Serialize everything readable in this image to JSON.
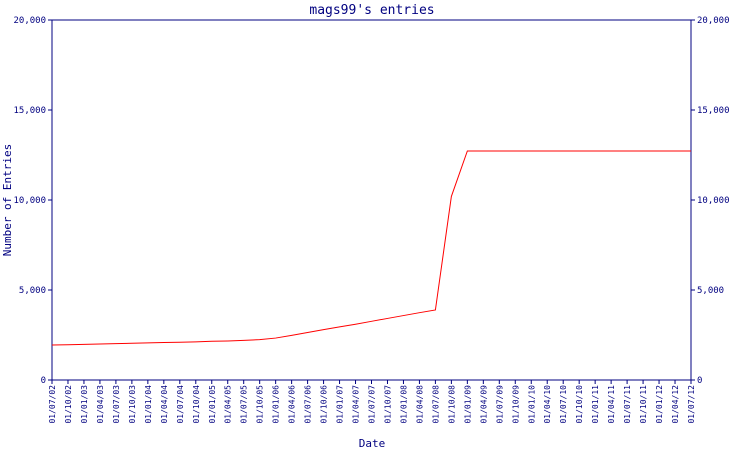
{
  "chart_data": {
    "type": "line",
    "title": "mags99's entries",
    "x_label": "Date",
    "y_label": "Number of Entries",
    "categories": [
      "01/07/02",
      "01/10/02",
      "01/01/03",
      "01/04/03",
      "01/07/03",
      "01/10/03",
      "01/01/04",
      "01/04/04",
      "01/07/04",
      "01/10/04",
      "01/01/05",
      "01/04/05",
      "01/07/05",
      "01/10/05",
      "01/01/06",
      "01/04/06",
      "01/07/06",
      "01/10/06",
      "01/01/07",
      "01/04/07",
      "01/07/07",
      "01/10/07",
      "01/01/08",
      "01/04/08",
      "01/07/08",
      "01/10/08",
      "01/01/09",
      "01/04/09",
      "01/07/09",
      "01/10/09",
      "01/01/10",
      "01/04/10",
      "01/07/10",
      "01/10/10",
      "01/01/11",
      "01/04/11",
      "01/07/11",
      "01/10/11",
      "01/01/12",
      "01/04/12",
      "01/07/12"
    ],
    "series": [
      {
        "name": "Entries",
        "color": "#ff0000",
        "values": [
          1944,
          1960,
          1980,
          2000,
          2020,
          2040,
          2060,
          2080,
          2100,
          2120,
          2150,
          2170,
          2200,
          2240,
          2330,
          2480,
          2640,
          2800,
          2950,
          3100,
          3260,
          3420,
          3580,
          3740,
          3890,
          10200,
          12722,
          12722,
          12722,
          12722,
          12722,
          12722,
          12722,
          12722,
          12722,
          12722,
          12722,
          12722,
          12722,
          12722,
          12722
        ]
      }
    ],
    "ylim": [
      0,
      20000
    ],
    "yticks": [
      0,
      {
        "value": 5000,
        "label": "5,000"
      },
      {
        "value": 10000,
        "label": "10,000"
      },
      {
        "value": 15000,
        "label": "15,000"
      },
      {
        "value": 20000,
        "label": "20,000"
      }
    ],
    "y2lim": [
      0,
      20000
    ],
    "y2ticks": [
      0,
      {
        "value": 5000,
        "label": "5,000"
      },
      {
        "value": 10000,
        "label": "10,000"
      },
      {
        "value": 15000,
        "label": "15,000"
      },
      {
        "value": 20000,
        "label": "20,000"
      }
    ],
    "axis_color": "#000080"
  }
}
